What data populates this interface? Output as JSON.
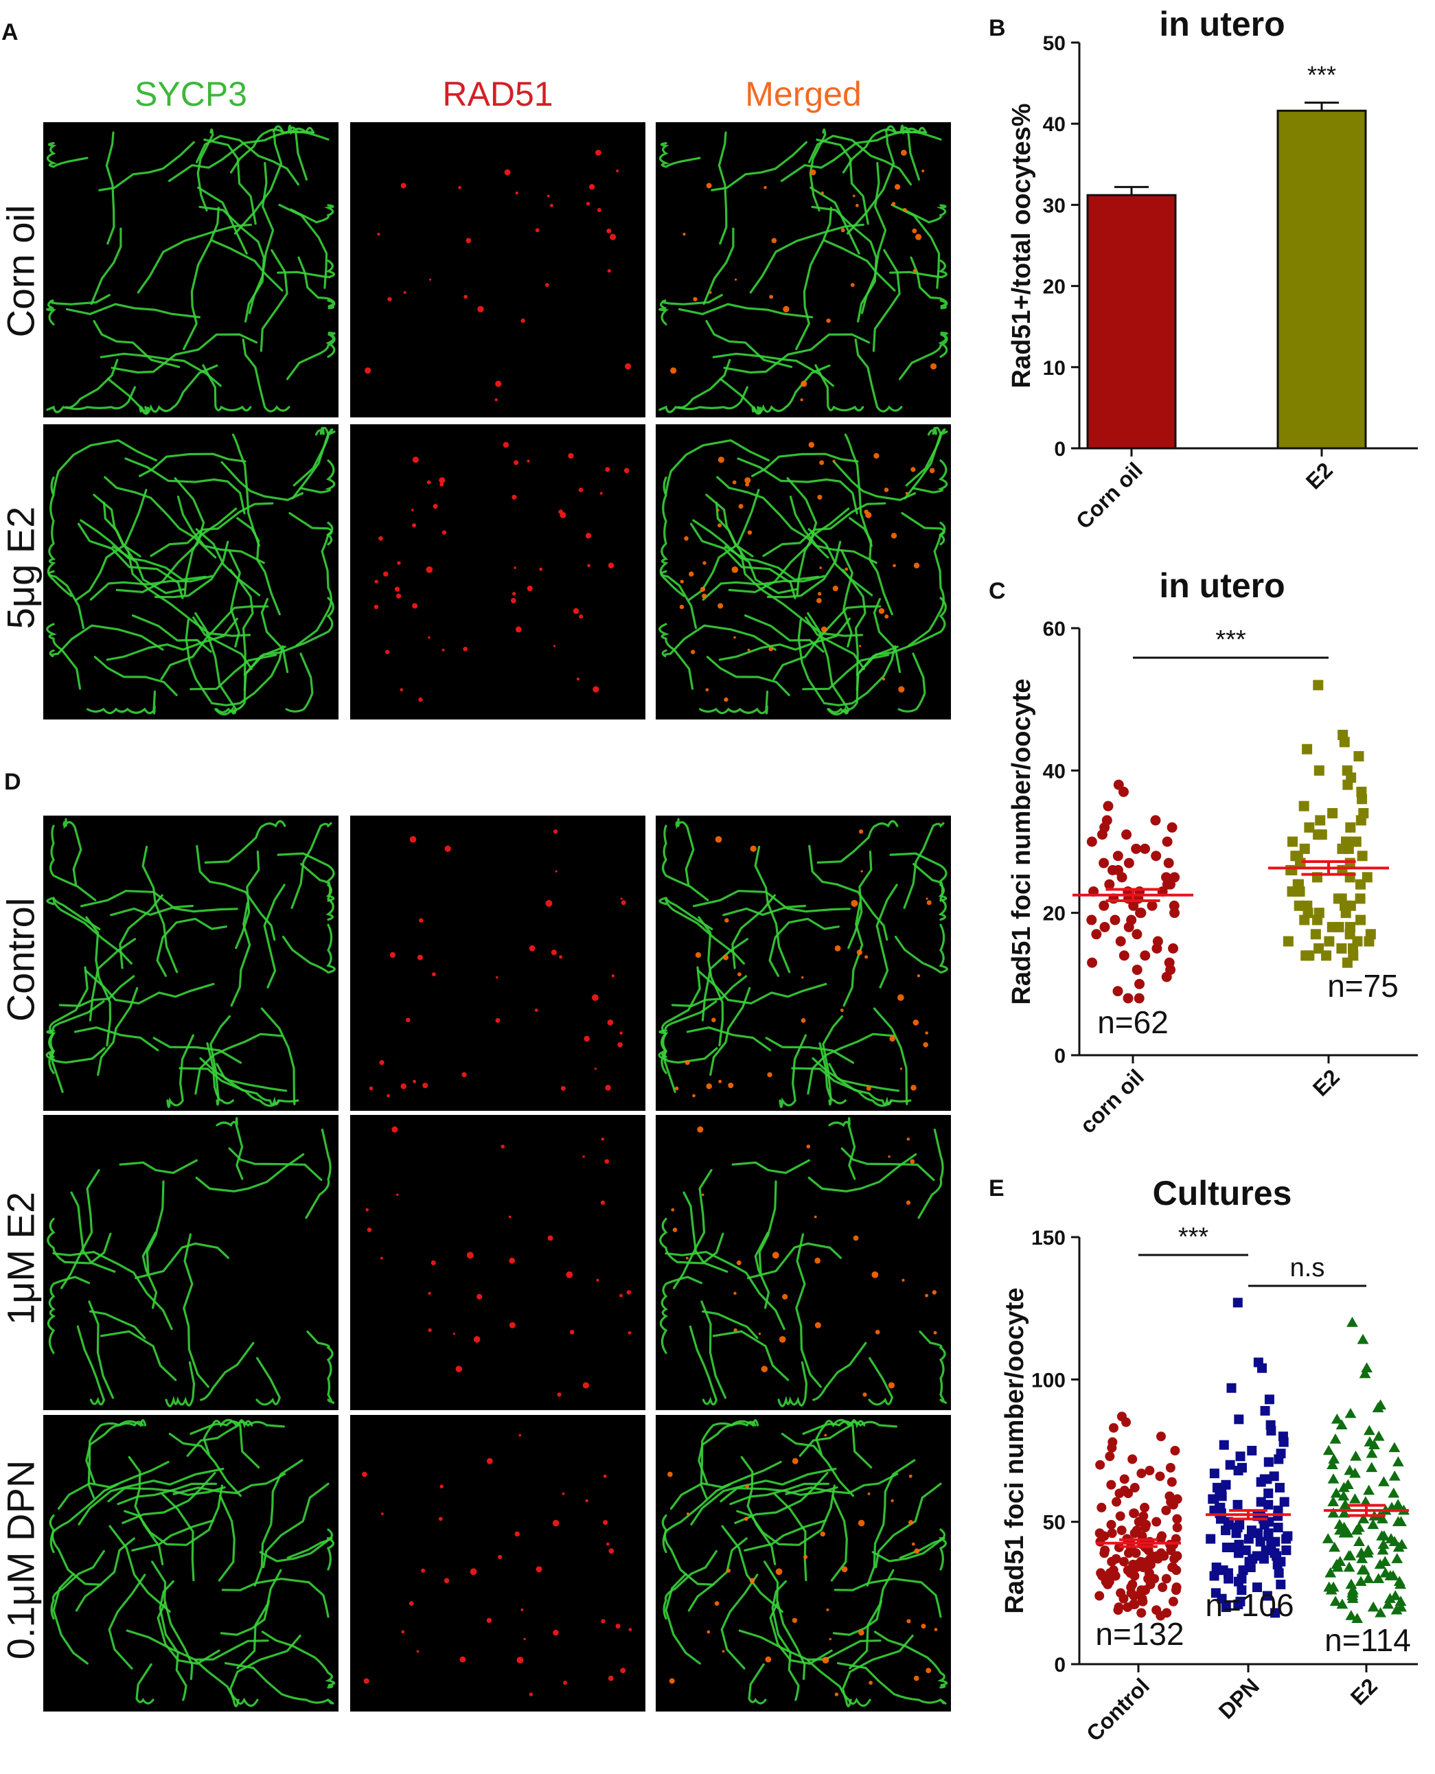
{
  "panels": {
    "A": {
      "letter": "A",
      "columns": [
        {
          "label": "SYCP3",
          "color": "#3cb83a"
        },
        {
          "label": "RAD51",
          "color": "#d41f26"
        },
        {
          "label": "Merged",
          "color": "#f26a24"
        }
      ],
      "rows": [
        "Corn oil",
        "5μg E2"
      ]
    },
    "D": {
      "letter": "D",
      "rows": [
        "Control",
        "1μM E2",
        "0.1μM DPN"
      ]
    },
    "B": {
      "letter": "B"
    },
    "C": {
      "letter": "C"
    },
    "E": {
      "letter": "E"
    }
  },
  "colors": {
    "corn_oil_red": "#a50d0d",
    "e2_olive": "#808000",
    "dpn_navy": "#0b0b8c",
    "e2_green": "#0f6e10",
    "mean_line_red": "#e8131b",
    "sycp3_green": "#39d23a",
    "rad51_red": "#ff1a1a"
  },
  "chart_data": [
    {
      "panel": "B",
      "type": "bar",
      "title": "in utero",
      "ylabel": "Rad51+/total oocytes%",
      "categories": [
        "Corn oil",
        "E2"
      ],
      "values": [
        31.2,
        41.6
      ],
      "errors": [
        1.0,
        1.0
      ],
      "ylim": [
        0,
        50
      ],
      "yticks": [
        0,
        10,
        20,
        30,
        40,
        50
      ],
      "significance": [
        {
          "label": "***",
          "over": "E2"
        }
      ]
    },
    {
      "panel": "C",
      "type": "scatter",
      "title": "in utero",
      "ylabel": "Rad51 foci number/oocyte",
      "categories": [
        "corn oil",
        "E2"
      ],
      "ylim": [
        0,
        60
      ],
      "yticks": [
        0,
        20,
        40,
        60
      ],
      "series": [
        {
          "category": "corn oil",
          "marker": "circle",
          "n_label": "n=62",
          "mean": 22.5,
          "sem": 0.8,
          "values": [
            38,
            37,
            35,
            33,
            33,
            32,
            32,
            31,
            31,
            30,
            30,
            29,
            29,
            28,
            28,
            27,
            27,
            27,
            26,
            26,
            25,
            25,
            25,
            24,
            24,
            24,
            23,
            23,
            23,
            23,
            22,
            22,
            22,
            21,
            21,
            21,
            21,
            20,
            20,
            20,
            19,
            19,
            19,
            18,
            18,
            17,
            17,
            16,
            16,
            15,
            15,
            14,
            14,
            13,
            13,
            12,
            12,
            11,
            10,
            9,
            8,
            8
          ]
        },
        {
          "category": "E2",
          "marker": "square",
          "n_label": "n=75",
          "mean": 26.3,
          "sem": 0.9,
          "values": [
            52,
            45,
            44,
            43,
            42,
            40,
            40,
            39,
            38,
            37,
            36,
            35,
            34,
            34,
            33,
            33,
            32,
            32,
            31,
            31,
            30,
            30,
            30,
            29,
            29,
            29,
            28,
            28,
            28,
            27,
            27,
            27,
            26,
            26,
            26,
            25,
            25,
            25,
            24,
            24,
            24,
            23,
            23,
            23,
            22,
            22,
            22,
            21,
            21,
            21,
            21,
            20,
            20,
            20,
            19,
            19,
            19,
            18,
            18,
            18,
            17,
            17,
            17,
            16,
            16,
            16,
            16,
            15,
            15,
            15,
            14,
            14,
            14,
            14,
            13
          ]
        }
      ],
      "significance": [
        {
          "label": "***",
          "between": [
            "corn oil",
            "E2"
          ]
        }
      ]
    },
    {
      "panel": "E",
      "type": "scatter",
      "title": "Cultures",
      "ylabel": "Rad51 foci number/oocyte",
      "categories": [
        "Control",
        "DPN",
        "E2"
      ],
      "ylim": [
        0,
        150
      ],
      "yticks": [
        0,
        50,
        100,
        150
      ],
      "series": [
        {
          "category": "Control",
          "marker": "circle",
          "n_label": "n=132",
          "mean": 42.5,
          "sem": 1.2,
          "values": [
            87,
            85,
            83,
            80,
            78,
            76,
            75,
            73,
            72,
            70,
            69,
            68,
            67,
            66,
            65,
            64,
            63,
            62,
            61,
            60,
            60,
            59,
            58,
            57,
            57,
            56,
            55,
            55,
            54,
            53,
            53,
            52,
            52,
            51,
            50,
            50,
            49,
            49,
            48,
            48,
            47,
            47,
            46,
            46,
            46,
            45,
            45,
            45,
            44,
            44,
            44,
            43,
            43,
            43,
            42,
            42,
            42,
            42,
            41,
            41,
            41,
            40,
            40,
            40,
            40,
            39,
            39,
            39,
            39,
            38,
            38,
            38,
            38,
            37,
            37,
            37,
            37,
            36,
            36,
            36,
            36,
            35,
            35,
            35,
            35,
            34,
            34,
            34,
            34,
            33,
            33,
            33,
            32,
            32,
            32,
            32,
            31,
            31,
            31,
            30,
            30,
            30,
            29,
            29,
            29,
            28,
            28,
            28,
            27,
            27,
            27,
            26,
            26,
            26,
            25,
            25,
            25,
            24,
            24,
            23,
            23,
            22,
            22,
            21,
            21,
            20,
            20,
            19,
            19,
            18,
            18,
            17
          ]
        },
        {
          "category": "DPN",
          "marker": "square",
          "n_label": "n=106",
          "mean": 52.5,
          "sem": 1.5,
          "values": [
            127,
            106,
            104,
            97,
            93,
            89,
            86,
            84,
            82,
            80,
            78,
            77,
            75,
            74,
            73,
            72,
            71,
            70,
            69,
            68,
            67,
            66,
            65,
            65,
            64,
            63,
            62,
            62,
            61,
            60,
            60,
            59,
            58,
            58,
            57,
            57,
            56,
            56,
            55,
            55,
            54,
            54,
            53,
            53,
            52,
            52,
            52,
            51,
            51,
            50,
            50,
            49,
            49,
            49,
            48,
            48,
            47,
            47,
            46,
            46,
            46,
            45,
            45,
            44,
            44,
            44,
            43,
            43,
            42,
            42,
            42,
            41,
            41,
            40,
            40,
            40,
            39,
            39,
            38,
            38,
            37,
            37,
            36,
            36,
            35,
            35,
            34,
            34,
            33,
            33,
            32,
            32,
            31,
            30,
            30,
            29,
            28,
            27,
            26,
            25,
            24,
            23,
            22,
            21,
            20,
            18
          ]
        },
        {
          "category": "E2",
          "marker": "triangle",
          "n_label": "n=114",
          "mean": 54.0,
          "sem": 1.8,
          "values": [
            120,
            114,
            104,
            102,
            91,
            90,
            88,
            86,
            84,
            82,
            80,
            79,
            78,
            77,
            76,
            75,
            74,
            73,
            72,
            71,
            70,
            69,
            68,
            67,
            66,
            65,
            64,
            63,
            62,
            61,
            60,
            60,
            59,
            58,
            57,
            57,
            56,
            56,
            55,
            55,
            54,
            54,
            53,
            53,
            52,
            52,
            51,
            51,
            50,
            50,
            49,
            49,
            48,
            48,
            47,
            47,
            46,
            46,
            45,
            45,
            44,
            44,
            43,
            43,
            42,
            42,
            41,
            41,
            40,
            40,
            39,
            39,
            38,
            38,
            37,
            37,
            36,
            36,
            35,
            35,
            34,
            34,
            33,
            33,
            32,
            32,
            31,
            31,
            30,
            30,
            29,
            29,
            28,
            28,
            27,
            27,
            26,
            26,
            25,
            25,
            24,
            24,
            23,
            23,
            22,
            22,
            21,
            21,
            20,
            20,
            19,
            18,
            17,
            16
          ]
        }
      ],
      "significance": [
        {
          "label": "***",
          "between": [
            "Control",
            "DPN"
          ]
        },
        {
          "label": "n.s",
          "between": [
            "DPN",
            "E2"
          ]
        }
      ]
    }
  ]
}
